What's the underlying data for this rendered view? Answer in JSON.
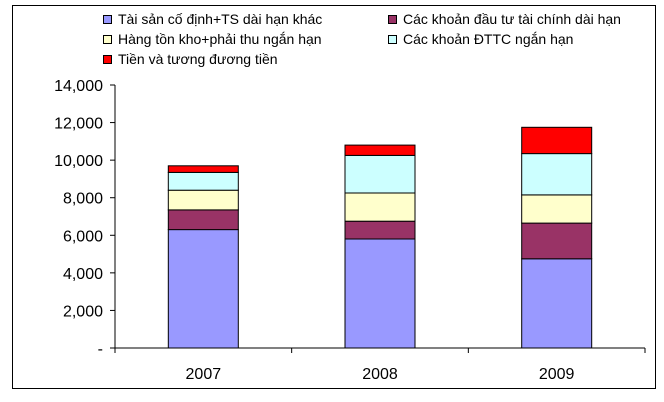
{
  "chart_data": {
    "type": "bar",
    "stacked": true,
    "categories": [
      "2007",
      "2008",
      "2009"
    ],
    "ylim": [
      0,
      14000
    ],
    "ytick_values": [
      0,
      2000,
      4000,
      6000,
      8000,
      10000,
      12000,
      14000
    ],
    "ytick_labels": [
      "-",
      "2,000",
      "4,000",
      "6,000",
      "8,000",
      "10,000",
      "12,000",
      "14,000"
    ],
    "grid": false,
    "legend_position": "top",
    "series": [
      {
        "name": "Tài sản cố định+TS dài hạn khác",
        "color": "#9999FF",
        "values": [
          6300,
          5800,
          4750
        ]
      },
      {
        "name": "Các khoản đầu tư tài chính dài hạn",
        "color": "#993366",
        "values": [
          1050,
          950,
          1900
        ]
      },
      {
        "name": "Hàng tồn kho+phải thu ngắn hạn",
        "color": "#FFFFCC",
        "values": [
          1050,
          1500,
          1500
        ]
      },
      {
        "name": "Các khoản ĐTTC ngắn hạn",
        "color": "#CCFFFF",
        "values": [
          950,
          2000,
          2200
        ]
      },
      {
        "name": "Tiền và tương đương tiền",
        "color": "#FF0000",
        "values": [
          350,
          550,
          1400
        ]
      }
    ]
  }
}
